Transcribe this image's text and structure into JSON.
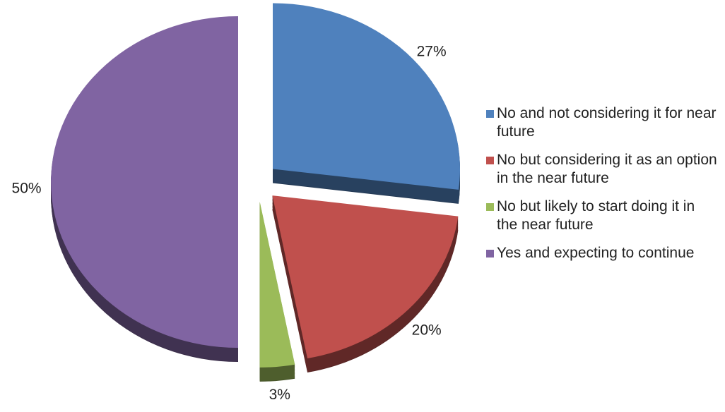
{
  "chart_data": {
    "type": "pie",
    "categories": [
      "No and not considering it for near future",
      "No but considering it as an option in the near future",
      "No but likely to start doing it in the near future",
      "Yes and expecting to continue"
    ],
    "values": [
      27,
      20,
      3,
      50
    ],
    "value_labels": [
      "27%",
      "20%",
      "3%",
      "50%"
    ],
    "colors": [
      "#4f81bd",
      "#c0504d",
      "#9bbb59",
      "#8064a2"
    ],
    "legend": "right"
  }
}
